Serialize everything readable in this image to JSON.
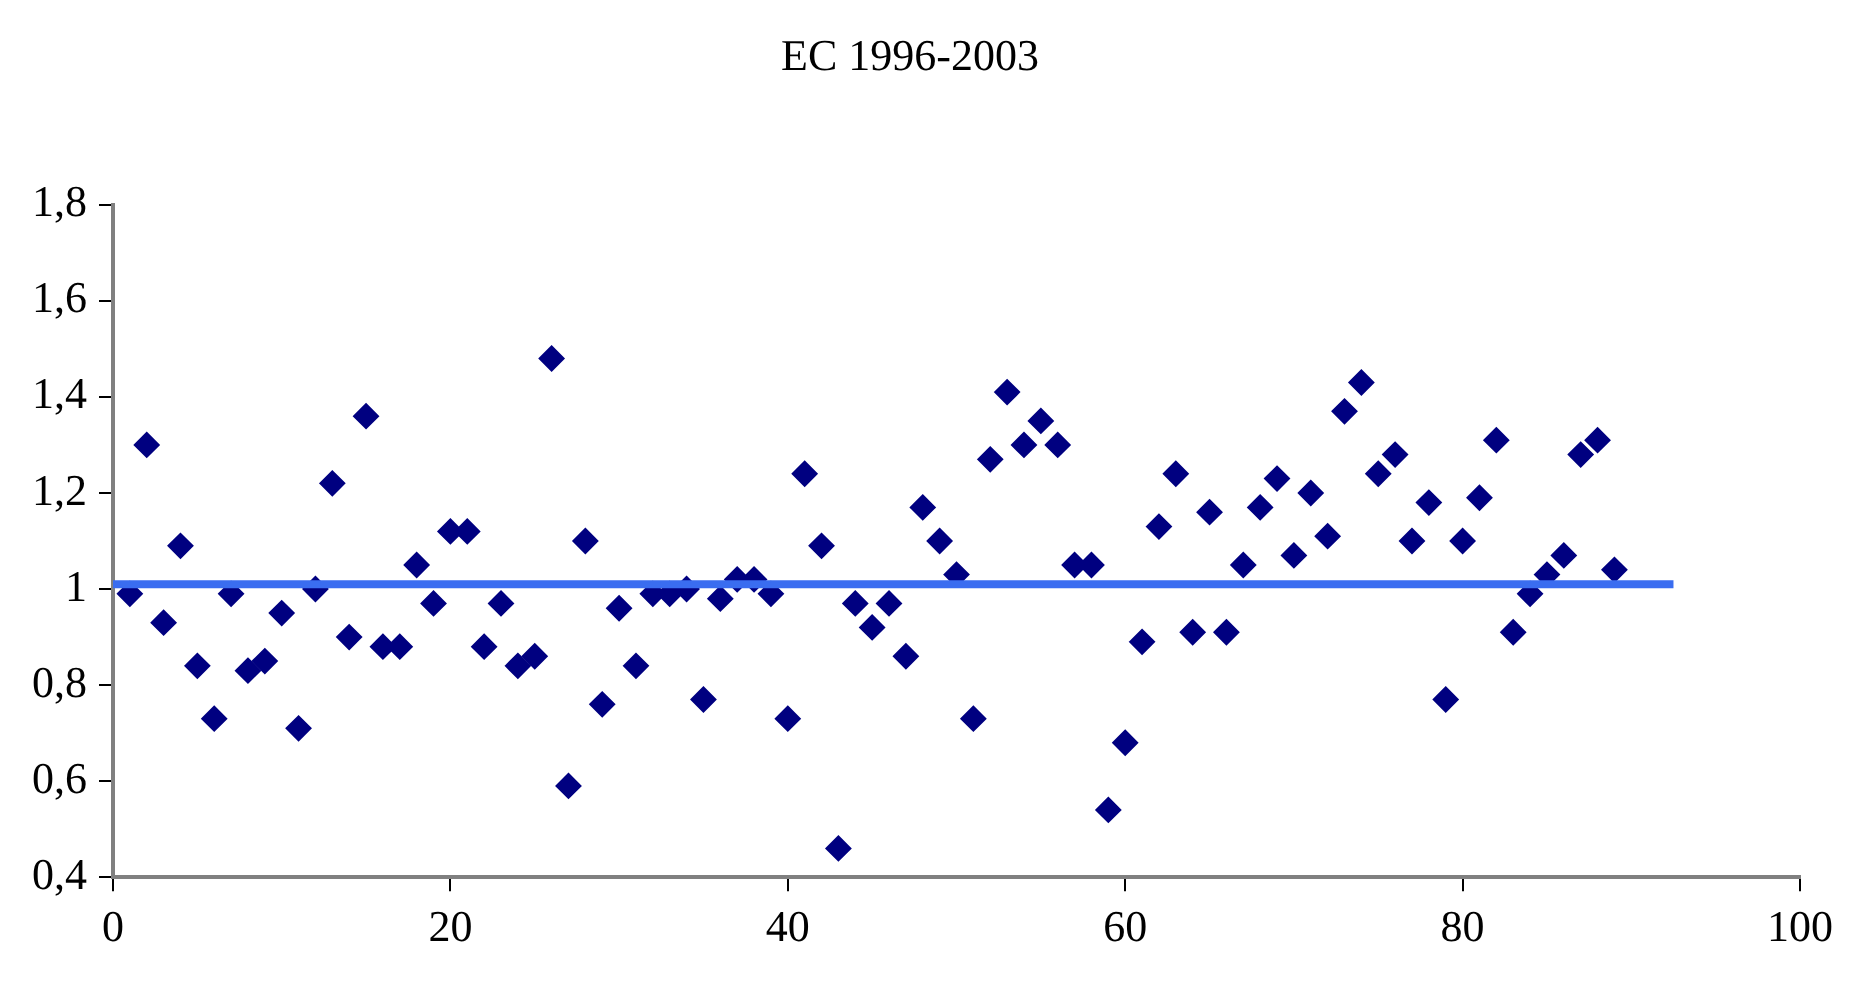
{
  "chart_data": {
    "type": "scatter",
    "title": "EC 1996-2003",
    "grid": false,
    "legend": false,
    "xlim": [
      0,
      100
    ],
    "xticks": [
      0,
      20,
      40,
      60,
      80,
      100
    ],
    "ylim": [
      0.4,
      1.8
    ],
    "yticks": [
      {
        "value": 0.4,
        "label": "0,4"
      },
      {
        "value": 0.6,
        "label": "0,6"
      },
      {
        "value": 0.8,
        "label": "0,8"
      },
      {
        "value": 1,
        "label": "1"
      },
      {
        "value": 1.2,
        "label": "1,2"
      },
      {
        "value": 1.4,
        "label": "1,4"
      },
      {
        "value": 1.6,
        "label": "1,6"
      },
      {
        "value": 1.8,
        "label": "1,8"
      }
    ],
    "series": [
      {
        "marker": "diamond",
        "color": "#000080",
        "x": [
          1,
          2,
          3,
          4,
          5,
          6,
          7,
          8,
          9,
          10,
          11,
          12,
          13,
          14,
          15,
          16,
          17,
          18,
          19,
          20,
          21,
          22,
          23,
          24,
          25,
          26,
          27,
          28,
          29,
          30,
          31,
          32,
          33,
          34,
          35,
          36,
          37,
          38,
          39,
          40,
          41,
          42,
          43,
          44,
          45,
          46,
          47,
          48,
          49,
          50,
          51,
          52,
          53,
          54,
          55,
          56,
          57,
          58,
          59,
          60,
          61,
          62,
          63,
          64,
          65,
          66,
          67,
          68,
          69,
          70,
          71,
          72,
          73,
          74,
          75,
          76,
          77,
          78,
          79,
          80,
          81,
          82,
          83,
          84,
          85,
          86,
          87,
          88,
          89
        ],
        "values": [
          0.99,
          1.3,
          0.93,
          1.09,
          0.84,
          0.73,
          0.99,
          0.83,
          0.85,
          0.95,
          0.71,
          1.0,
          1.22,
          0.9,
          1.36,
          0.88,
          0.88,
          1.05,
          0.97,
          1.12,
          1.12,
          0.88,
          0.97,
          0.84,
          0.86,
          1.48,
          0.59,
          1.1,
          0.76,
          0.96,
          0.84,
          0.99,
          0.99,
          1.0,
          0.77,
          0.98,
          1.02,
          1.02,
          0.99,
          0.73,
          1.24,
          1.09,
          0.46,
          0.97,
          0.92,
          0.97,
          0.86,
          1.17,
          1.1,
          1.03,
          0.73,
          1.27,
          1.41,
          1.3,
          1.35,
          1.3,
          1.05,
          1.05,
          0.54,
          0.68,
          0.89,
          1.13,
          1.24,
          0.91,
          1.16,
          0.91,
          1.05,
          1.17,
          1.23,
          1.07,
          1.2,
          1.11,
          1.37,
          1.43,
          1.24,
          1.28,
          1.1,
          1.18,
          0.77,
          1.1,
          1.19,
          1.31,
          0.91,
          0.99,
          1.03,
          1.07,
          1.28,
          1.31,
          1.04
        ]
      },
      {
        "type": "line",
        "marker": "none",
        "color": "#3a6df0",
        "x": [
          0,
          92.5
        ],
        "values": [
          1.01,
          1.01
        ]
      }
    ]
  }
}
